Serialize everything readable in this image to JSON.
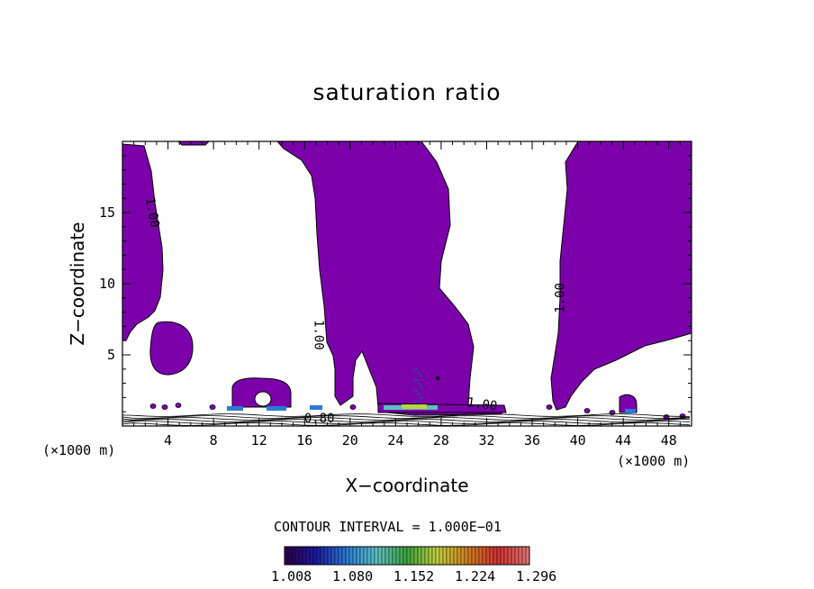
{
  "chart_data": {
    "type": "contour",
    "title": "saturation ratio",
    "xlabel": "X−coordinate",
    "ylabel": "Z−coordinate",
    "x_unit_left": "(×1000 m)",
    "x_unit_right": "(×1000 m)",
    "xlim": [
      0,
      50
    ],
    "ylim": [
      0,
      20
    ],
    "x_ticks": [
      4,
      8,
      12,
      16,
      20,
      24,
      28,
      32,
      36,
      40,
      44,
      48
    ],
    "y_ticks": [
      5,
      10,
      15
    ],
    "contour_labels": [
      {
        "text": "1.00",
        "x": 2.6,
        "z": 15.0,
        "rotate": 80
      },
      {
        "text": "1.00",
        "x": 17.2,
        "z": 6.4,
        "rotate": 90
      },
      {
        "text": "1.00",
        "x": 38.5,
        "z": 9.0,
        "rotate": -90
      },
      {
        "text": "1.00",
        "x": 31.6,
        "z": 1.5,
        "rotate": 8
      },
      {
        "text": "0.80",
        "x": 17.3,
        "z": 0.5,
        "rotate": 0
      }
    ],
    "contour_interval_text": "CONTOUR INTERVAL = 1.000E−01",
    "colorbar": {
      "tick_labels": [
        "1.008",
        "1.080",
        "1.152",
        "1.224",
        "1.296"
      ],
      "range": [
        1.0,
        1.3
      ],
      "colors": [
        "#2b004f",
        "#1a1a9e",
        "#2a7bd6",
        "#5cc0c0",
        "#3fa23f",
        "#c0d040",
        "#d08020",
        "#d03030",
        "#e07070"
      ]
    },
    "fill_color": "#7b00aa",
    "grid": false
  }
}
